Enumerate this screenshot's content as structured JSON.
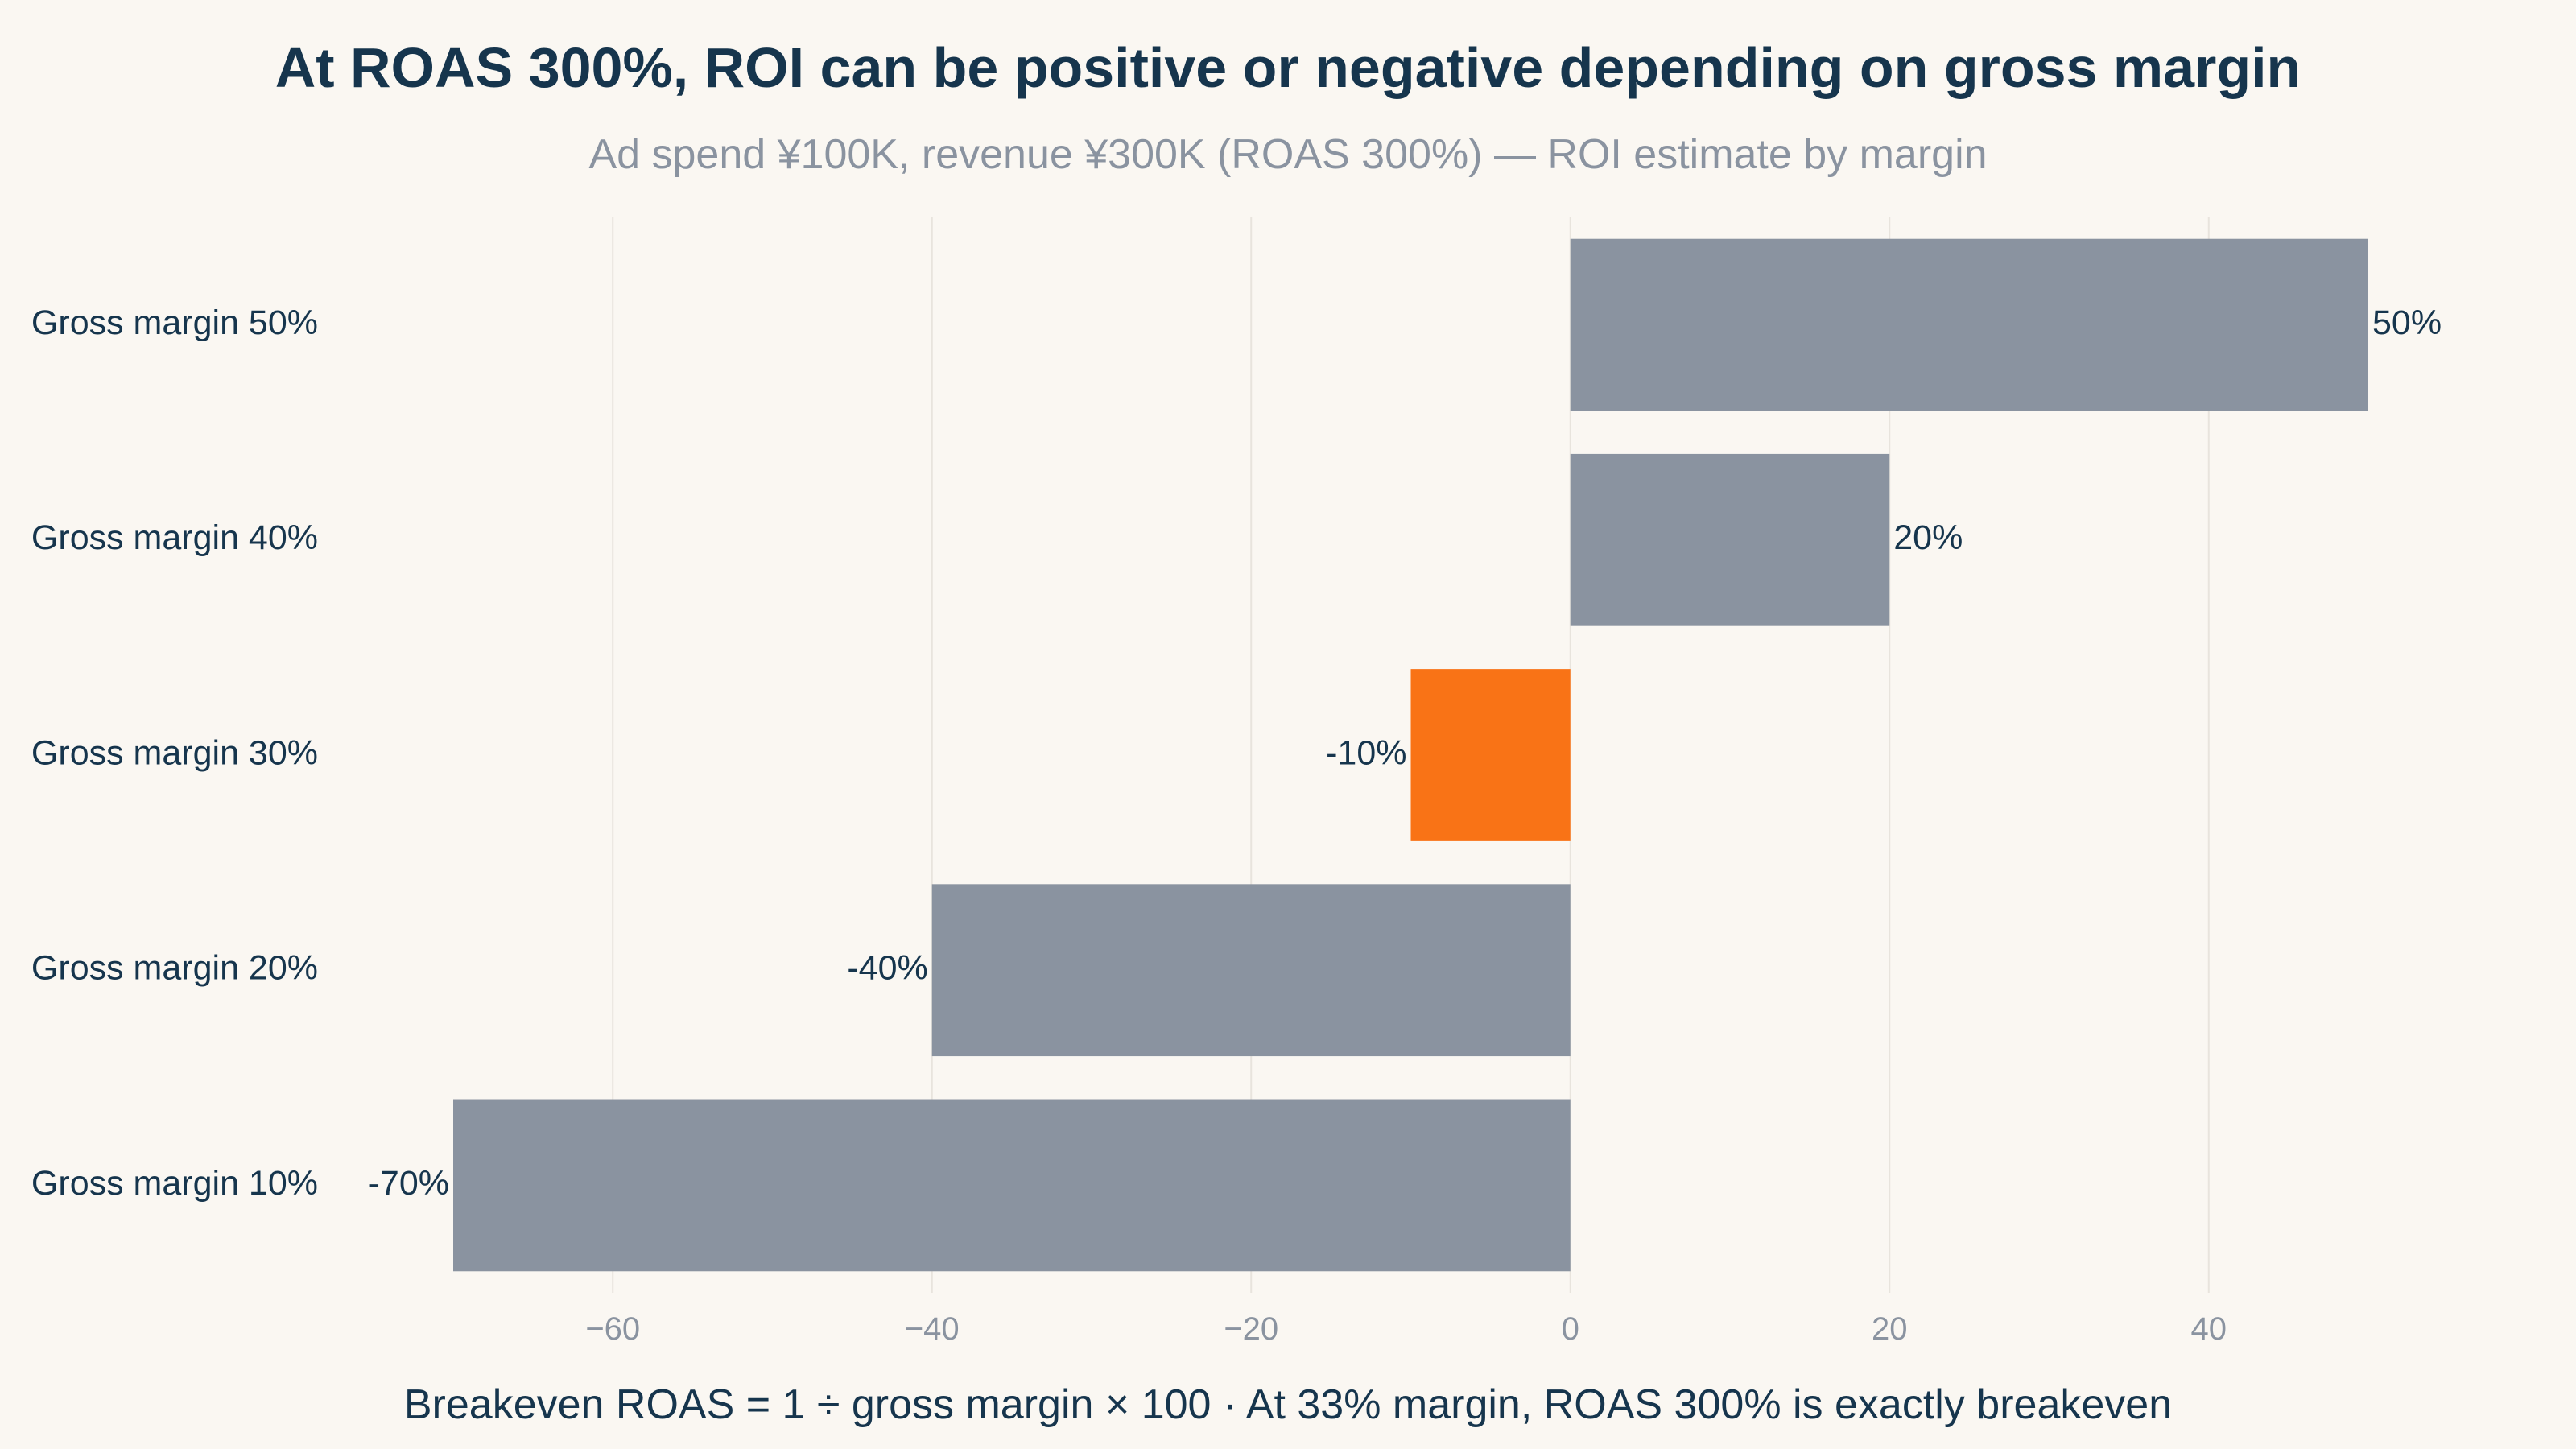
{
  "chart_data": {
    "type": "bar",
    "orientation": "horizontal",
    "title": "At ROAS 300%, ROI can be positive or negative depending on gross margin",
    "subtitle": "Ad spend ¥100K, revenue ¥300K (ROAS 300%) — ROI estimate by margin",
    "footnote": "Breakeven ROAS = 1 ÷ gross margin × 100 · At 33% margin, ROAS 300% is exactly breakeven",
    "categories": [
      "Gross margin 10%",
      "Gross margin 20%",
      "Gross margin 30%",
      "Gross margin 40%",
      "Gross margin 50%"
    ],
    "values": [
      -70,
      -40,
      -10,
      20,
      50
    ],
    "value_labels": [
      "-70%",
      "-40%",
      "-10%",
      "20%",
      "50%"
    ],
    "highlight_index": 2,
    "xlim": [
      -70,
      50
    ],
    "x_ticks": [
      -60,
      -40,
      -20,
      0,
      20,
      40
    ],
    "x_tick_labels": [
      "−60",
      "−40",
      "−20",
      "0",
      "20",
      "40"
    ],
    "grid": true,
    "colors": {
      "bar": "#8a93a0",
      "highlight": "#f97316",
      "text": "#16354d",
      "muted": "#8a93a0",
      "grid": "#e8e4dd",
      "background": "#faf7f2"
    }
  }
}
